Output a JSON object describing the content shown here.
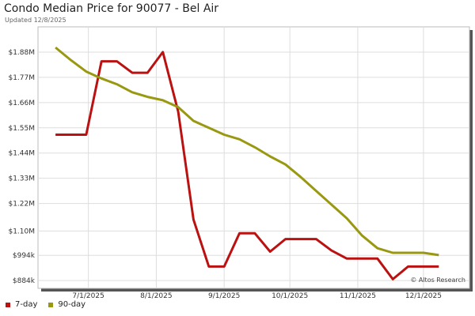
{
  "chart_data": {
    "type": "line",
    "title": "Condo Median Price for 90077 - Bel Air",
    "subtitle": "Updated 12/8/2025",
    "watermark": "© Altos Research",
    "y_ticks": [
      {
        "value": 884000,
        "label": "$884k"
      },
      {
        "value": 994000,
        "label": "$994k"
      },
      {
        "value": 1100000,
        "label": "$1.10M"
      },
      {
        "value": 1220000,
        "label": "$1.22M"
      },
      {
        "value": 1330000,
        "label": "$1.33M"
      },
      {
        "value": 1440000,
        "label": "$1.44M"
      },
      {
        "value": 1550000,
        "label": "$1.55M"
      },
      {
        "value": 1660000,
        "label": "$1.66M"
      },
      {
        "value": 1770000,
        "label": "$1.77M"
      },
      {
        "value": 1880000,
        "label": "$1.88M"
      }
    ],
    "ylim": [
      850000,
      1990000
    ],
    "x_ticks": [
      {
        "date": "2025-07-01",
        "label": "7/1/2025"
      },
      {
        "date": "2025-08-01",
        "label": "8/1/2025"
      },
      {
        "date": "2025-09-01",
        "label": "9/1/2025"
      },
      {
        "date": "2025-10-01",
        "label": "10/1/2025"
      },
      {
        "date": "2025-11-01",
        "label": "11/1/2025"
      },
      {
        "date": "2025-12-01",
        "label": "12/1/2025"
      }
    ],
    "xlim": [
      "2025-06-08",
      "2025-12-22"
    ],
    "grid": true,
    "legend_position": "bottom-left",
    "series": [
      {
        "name": "7-day",
        "color": "#bb1111",
        "points": [
          {
            "x": "2025-06-16",
            "y": 1520000
          },
          {
            "x": "2025-06-23",
            "y": 1520000
          },
          {
            "x": "2025-06-30",
            "y": 1520000
          },
          {
            "x": "2025-07-07",
            "y": 1840000
          },
          {
            "x": "2025-07-14",
            "y": 1840000
          },
          {
            "x": "2025-07-21",
            "y": 1790000
          },
          {
            "x": "2025-07-28",
            "y": 1790000
          },
          {
            "x": "2025-08-04",
            "y": 1880000
          },
          {
            "x": "2025-08-11",
            "y": 1620000
          },
          {
            "x": "2025-08-18",
            "y": 1150000
          },
          {
            "x": "2025-08-25",
            "y": 945000
          },
          {
            "x": "2025-09-01",
            "y": 945000
          },
          {
            "x": "2025-09-08",
            "y": 1090000
          },
          {
            "x": "2025-09-15",
            "y": 1090000
          },
          {
            "x": "2025-09-22",
            "y": 1010000
          },
          {
            "x": "2025-09-29",
            "y": 1065000
          },
          {
            "x": "2025-10-06",
            "y": 1065000
          },
          {
            "x": "2025-10-13",
            "y": 1065000
          },
          {
            "x": "2025-10-20",
            "y": 1015000
          },
          {
            "x": "2025-10-27",
            "y": 980000
          },
          {
            "x": "2025-11-03",
            "y": 980000
          },
          {
            "x": "2025-11-10",
            "y": 980000
          },
          {
            "x": "2025-11-17",
            "y": 890000
          },
          {
            "x": "2025-11-24",
            "y": 945000
          },
          {
            "x": "2025-12-01",
            "y": 945000
          },
          {
            "x": "2025-12-08",
            "y": 945000
          }
        ]
      },
      {
        "name": "90-day",
        "color": "#999911",
        "points": [
          {
            "x": "2025-06-16",
            "y": 1900000
          },
          {
            "x": "2025-06-23",
            "y": 1845000
          },
          {
            "x": "2025-06-30",
            "y": 1795000
          },
          {
            "x": "2025-07-07",
            "y": 1765000
          },
          {
            "x": "2025-07-14",
            "y": 1740000
          },
          {
            "x": "2025-07-21",
            "y": 1705000
          },
          {
            "x": "2025-07-28",
            "y": 1685000
          },
          {
            "x": "2025-08-04",
            "y": 1670000
          },
          {
            "x": "2025-08-11",
            "y": 1640000
          },
          {
            "x": "2025-08-18",
            "y": 1580000
          },
          {
            "x": "2025-08-25",
            "y": 1550000
          },
          {
            "x": "2025-09-01",
            "y": 1520000
          },
          {
            "x": "2025-09-08",
            "y": 1500000
          },
          {
            "x": "2025-09-15",
            "y": 1465000
          },
          {
            "x": "2025-09-22",
            "y": 1425000
          },
          {
            "x": "2025-09-29",
            "y": 1390000
          },
          {
            "x": "2025-10-06",
            "y": 1335000
          },
          {
            "x": "2025-10-13",
            "y": 1275000
          },
          {
            "x": "2025-10-20",
            "y": 1215000
          },
          {
            "x": "2025-10-27",
            "y": 1155000
          },
          {
            "x": "2025-11-03",
            "y": 1080000
          },
          {
            "x": "2025-11-10",
            "y": 1025000
          },
          {
            "x": "2025-11-17",
            "y": 1005000
          },
          {
            "x": "2025-11-24",
            "y": 1005000
          },
          {
            "x": "2025-12-01",
            "y": 1005000
          },
          {
            "x": "2025-12-08",
            "y": 995000
          }
        ]
      }
    ]
  }
}
